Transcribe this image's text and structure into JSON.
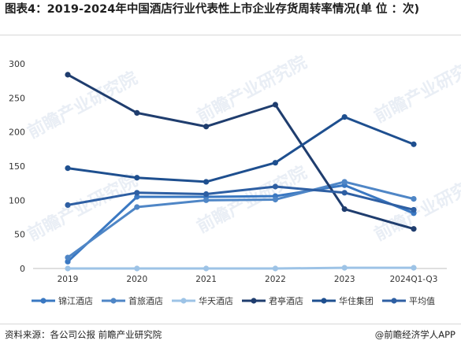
{
  "title": "图表4：2019-2024年中国酒店行业代表性上市企业存货周转率情况(单 位 ：次)",
  "footer": {
    "source": "资料来源：各公司公报 前瞻产业研究院",
    "brand": "@前瞻经济学人APP"
  },
  "watermark": "前瞻产业研究院",
  "colors": {
    "锦江酒店": "#3a78c2",
    "首旅酒店": "#4f86c6",
    "华天酒店": "#9dc3e6",
    "君亭酒店": "#1f3d6e",
    "华住集团": "#1e4f8f",
    "平均值": "#2e5fa3"
  },
  "chart_data": {
    "type": "line",
    "title": "图表4：2019-2024年中国酒店行业代表性上市企业存货周转率情况(单 位 ：次)",
    "xlabel": "",
    "ylabel": "",
    "x": [
      "2019",
      "2020",
      "2021",
      "2022",
      "2023",
      "2024Q1-Q3"
    ],
    "ylim": [
      0,
      300
    ],
    "yticks": [
      0,
      50,
      100,
      150,
      200,
      250,
      300
    ],
    "grid": false,
    "legend": "bottom",
    "series": [
      {
        "name": "锦江酒店",
        "values": [
          10,
          105,
          105,
          106,
          122,
          81
        ]
      },
      {
        "name": "首旅酒店",
        "values": [
          16,
          90,
          100,
          101,
          127,
          102
        ]
      },
      {
        "name": "华天酒店",
        "values": [
          0,
          0,
          0,
          0,
          1,
          1
        ]
      },
      {
        "name": "君亭酒店",
        "values": [
          284,
          228,
          208,
          240,
          87,
          58
        ]
      },
      {
        "name": "华住集团",
        "values": [
          147,
          133,
          127,
          155,
          222,
          182
        ]
      },
      {
        "name": "平均值",
        "values": [
          93,
          111,
          109,
          120,
          111,
          86
        ]
      }
    ]
  }
}
